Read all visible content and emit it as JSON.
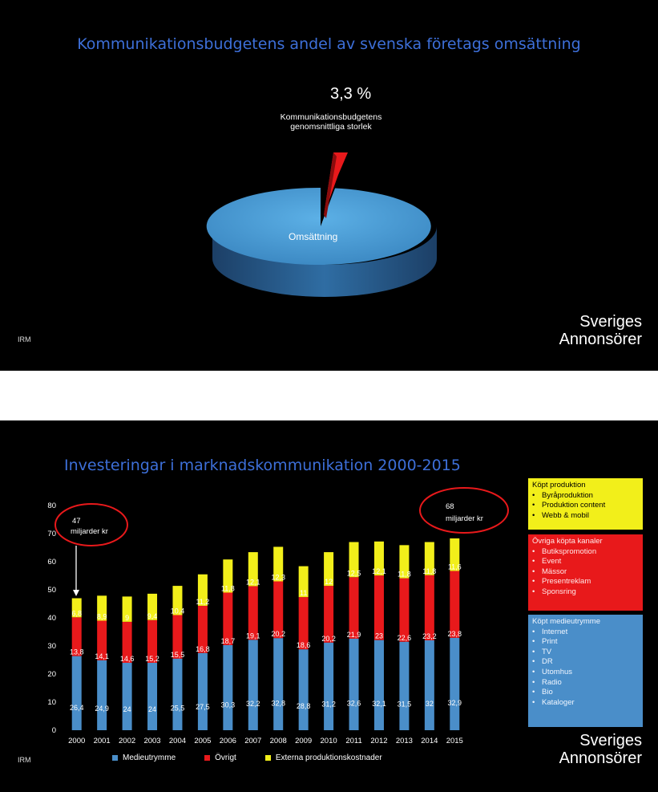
{
  "slide1": {
    "title": "Kommunikationsbudgetens  andel av svenska företags omsättning",
    "brand_line1": "Sveriges",
    "brand_line2": "Annonsörer",
    "source": "IRM",
    "chart_data": {
      "type": "pie",
      "labels": [
        "Omsättning",
        "Kommunikationsbudgetens genomsnittliga storlek"
      ],
      "values": [
        96.7,
        3.3
      ],
      "colors": [
        "#4a9fd6",
        "#e8191b"
      ],
      "annotation_value": "3,3 %",
      "annotation_line1": "Kommunikationsbudgetens",
      "annotation_line2": "genomsnittliga storlek",
      "slice_label": "Omsättning"
    }
  },
  "slide2": {
    "title": "Investeringar i marknadskommunikation  2000-2015",
    "brand_line1": "Sveriges",
    "brand_line2": "Annonsörer",
    "source": "IRM",
    "callout_left_line1": "47",
    "callout_left_line2": "miljarder kr",
    "callout_right_line1": "68",
    "callout_right_line2": "miljarder kr",
    "box_yellow": {
      "heading": "Köpt produktion",
      "items": [
        "Byråproduktion",
        "Produktion content",
        "Webb & mobil"
      ]
    },
    "box_red": {
      "heading": "Övriga köpta kanaler",
      "items": [
        "Butikspromotion",
        "Event",
        "Mässor",
        "Presentreklam",
        "Sponsring"
      ]
    },
    "box_blue": {
      "heading": "Köpt medieutrymme",
      "items": [
        "Internet",
        "Print",
        "TV",
        "DR",
        "Utomhus",
        "Radio",
        "Bio",
        "Kataloger"
      ]
    },
    "chart_data": {
      "type": "bar",
      "stacked": true,
      "categories": [
        "2000",
        "2001",
        "2002",
        "2003",
        "2004",
        "2005",
        "2006",
        "2007",
        "2008",
        "2009",
        "2010",
        "2011",
        "2012",
        "2013",
        "2014",
        "2015"
      ],
      "series": [
        {
          "name": "Medieutrymme",
          "color": "#4a8ec9",
          "values": [
            26.4,
            24.9,
            24,
            24,
            25.5,
            27.5,
            30.3,
            32.2,
            32.8,
            28.8,
            31.2,
            32.6,
            32.1,
            31.5,
            32,
            32.9
          ],
          "labels": [
            "26,4",
            "24,9",
            "24",
            "24",
            "25,5",
            "27,5",
            "30,3",
            "32,2",
            "32,8",
            "28,8",
            "31,2",
            "32,6",
            "32,1",
            "31,5",
            "32",
            "32,9"
          ]
        },
        {
          "name": "Övrigt",
          "color": "#e8191b",
          "values": [
            13.8,
            14.1,
            14.6,
            15.2,
            15.5,
            16.8,
            18.7,
            19.1,
            20.2,
            18.6,
            20.2,
            21.9,
            23,
            22.6,
            23.2,
            23.8
          ],
          "labels": [
            "13,8",
            "14,1",
            "14,6",
            "15,2",
            "15,5",
            "16,8",
            "18,7",
            "19,1",
            "20,2",
            "18,6",
            "20,2",
            "21,9",
            "23",
            "22,6",
            "23,2",
            "23,8"
          ]
        },
        {
          "name": "Externa produktionskostnader",
          "color": "#f2ef1a",
          "values": [
            6.8,
            8.9,
            9,
            9.4,
            10.4,
            11.2,
            11.8,
            12.1,
            12.3,
            11,
            12,
            12.5,
            12.1,
            11.8,
            11.8,
            11.6
          ],
          "labels": [
            "6,8",
            "8,9",
            "9",
            "9,4",
            "10,4",
            "11,2",
            "11,8",
            "12,1",
            "12,3",
            "11",
            "12",
            "12,5",
            "12,1",
            "11,8",
            "11,8",
            "11,6"
          ]
        }
      ],
      "y_ticks": [
        "0",
        "10",
        "20",
        "30",
        "40",
        "50",
        "60",
        "70",
        "80"
      ],
      "ylim": [
        0,
        80
      ],
      "legend_position": "bottom",
      "grid": false
    }
  }
}
